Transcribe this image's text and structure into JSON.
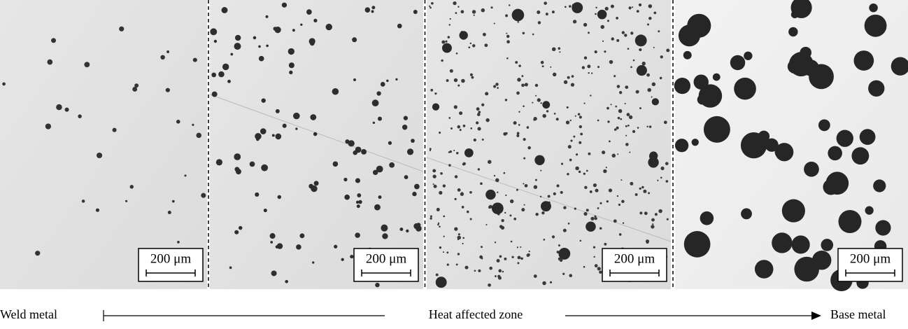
{
  "panels": [
    {
      "scale_bar": "200 μm"
    },
    {
      "scale_bar": "200 μm"
    },
    {
      "scale_bar": "200 μm"
    },
    {
      "scale_bar": "200 μm"
    }
  ],
  "axis": {
    "start": "Weld metal",
    "middle": "Heat affected zone",
    "end": "Base metal"
  }
}
